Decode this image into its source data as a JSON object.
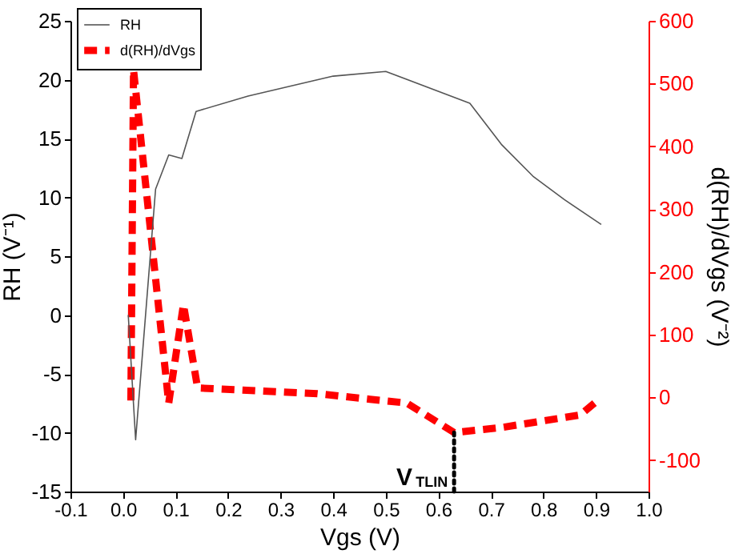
{
  "chart_data": {
    "type": "line",
    "xlabel": "Vgs (V)",
    "ylabel": "RH (V⁻¹)",
    "y2label": "d(RH)/dVgs (V⁻²)",
    "xlim": [
      -0.1,
      1.0
    ],
    "xticks": [
      -0.1,
      {
        "value": 0.0,
        "label": "0.0"
      },
      0.1,
      0.2,
      0.3,
      0.4,
      0.5,
      0.6,
      0.7,
      0.8,
      0.9,
      {
        "value": 1.0,
        "label": "1.0"
      }
    ],
    "ylim": [
      -15,
      25
    ],
    "yticks": [
      -15,
      -10,
      -5,
      0,
      5,
      10,
      15,
      20,
      25
    ],
    "y2lim": [
      -150,
      600
    ],
    "y2ticks": [
      -100,
      0,
      100,
      200,
      300,
      400,
      500,
      600
    ],
    "grid": false,
    "legend": "top left",
    "marker": "none",
    "series": [
      {
        "name": "RH",
        "color": "#555555",
        "line_style": "solid",
        "x": [
          0.01,
          0.024,
          0.062,
          0.087,
          0.112,
          0.139,
          0.238,
          0.4,
          0.5,
          0.66,
          0.72,
          0.78,
          0.84,
          0.91
        ],
        "values": [
          0,
          -10.6,
          10.7,
          13.6,
          13.3,
          17.3,
          18.6,
          20.3,
          20.7,
          18,
          14.5,
          11.8,
          9.8,
          7.7
        ]
      },
      {
        "name": "d(RH)/dVgs",
        "color": "#ff0000",
        "line_style": "dashed",
        "axis": "y2",
        "x": [
          0.015,
          0.02,
          0.087,
          0.115,
          0.142,
          0.37,
          0.47,
          0.54,
          0.63,
          0.72,
          0.87,
          0.9
        ],
        "values": [
          -5,
          522,
          -9,
          148,
          15,
          6,
          -3,
          -9,
          -56,
          -48,
          -28,
          -7
        ]
      }
    ],
    "ref_lines": [
      {
        "axis": "x",
        "value": 0.63,
        "label": "V$_{TLIN}$",
        "line_style": "dotted",
        "color": "#000000"
      }
    ]
  }
}
